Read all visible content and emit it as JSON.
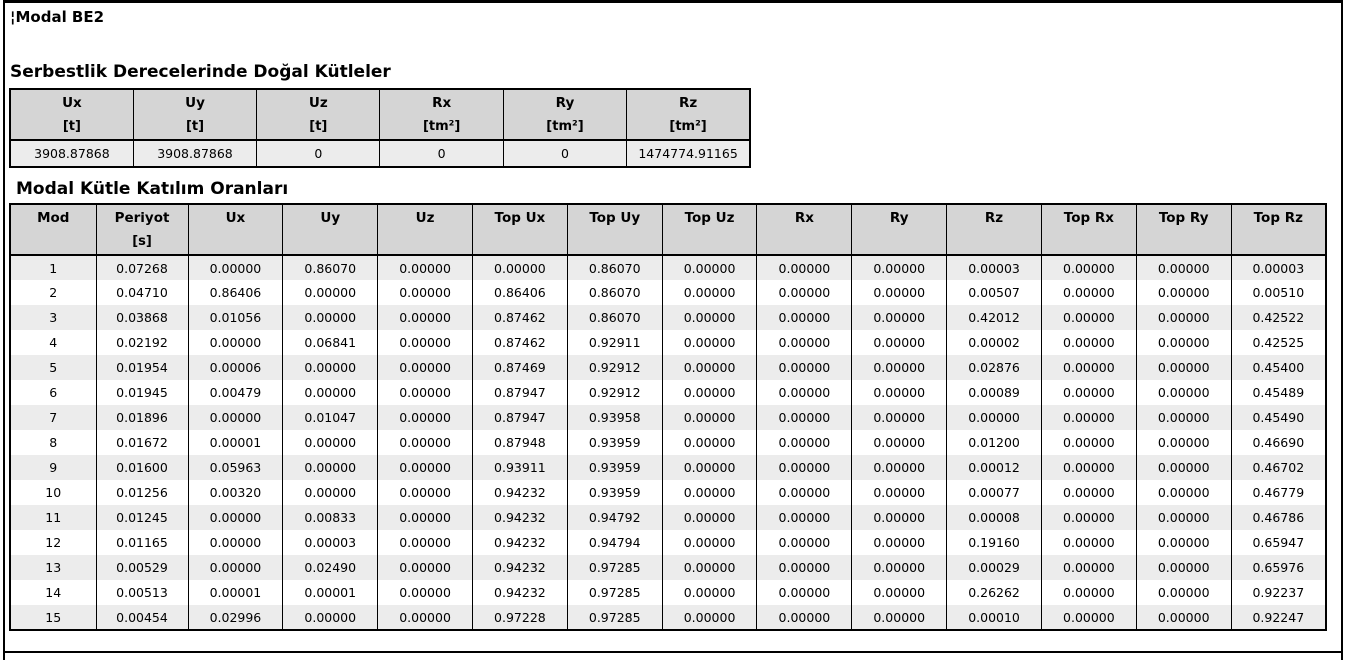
{
  "page": {
    "title": "¦Modal BE2"
  },
  "colors": {
    "header_bg": "#d5d5d5",
    "row_alt_bg": "#ececec",
    "row_bg": "#ffffff",
    "border": "#000000"
  },
  "natural_masses_table": {
    "heading": "Serbestlik Derecelerinde Doğal Kütleler",
    "columns": [
      {
        "label": "Ux",
        "unit": "[t]"
      },
      {
        "label": "Uy",
        "unit": "[t]"
      },
      {
        "label": "Uz",
        "unit": "[t]"
      },
      {
        "label": "Rx",
        "unit": "[tm²]"
      },
      {
        "label": "Ry",
        "unit": "[tm²]"
      },
      {
        "label": "Rz",
        "unit": "[tm²]"
      }
    ],
    "values": [
      "3908.87868",
      "3908.87868",
      "0",
      "0",
      "0",
      "1474774.91165"
    ]
  },
  "modal_participation_table": {
    "heading": "Modal Kütle Katılım Oranları",
    "columns": [
      {
        "label": "Mod",
        "unit": ""
      },
      {
        "label": "Periyot",
        "unit": "[s]"
      },
      {
        "label": "Ux",
        "unit": ""
      },
      {
        "label": "Uy",
        "unit": ""
      },
      {
        "label": "Uz",
        "unit": ""
      },
      {
        "label": "Top Ux",
        "unit": ""
      },
      {
        "label": "Top Uy",
        "unit": ""
      },
      {
        "label": "Top Uz",
        "unit": ""
      },
      {
        "label": "Rx",
        "unit": ""
      },
      {
        "label": "Ry",
        "unit": ""
      },
      {
        "label": "Rz",
        "unit": ""
      },
      {
        "label": "Top Rx",
        "unit": ""
      },
      {
        "label": "Top Ry",
        "unit": ""
      },
      {
        "label": "Top Rz",
        "unit": ""
      }
    ],
    "rows": [
      [
        "1",
        "0.07268",
        "0.00000",
        "0.86070",
        "0.00000",
        "0.00000",
        "0.86070",
        "0.00000",
        "0.00000",
        "0.00000",
        "0.00003",
        "0.00000",
        "0.00000",
        "0.00003"
      ],
      [
        "2",
        "0.04710",
        "0.86406",
        "0.00000",
        "0.00000",
        "0.86406",
        "0.86070",
        "0.00000",
        "0.00000",
        "0.00000",
        "0.00507",
        "0.00000",
        "0.00000",
        "0.00510"
      ],
      [
        "3",
        "0.03868",
        "0.01056",
        "0.00000",
        "0.00000",
        "0.87462",
        "0.86070",
        "0.00000",
        "0.00000",
        "0.00000",
        "0.42012",
        "0.00000",
        "0.00000",
        "0.42522"
      ],
      [
        "4",
        "0.02192",
        "0.00000",
        "0.06841",
        "0.00000",
        "0.87462",
        "0.92911",
        "0.00000",
        "0.00000",
        "0.00000",
        "0.00002",
        "0.00000",
        "0.00000",
        "0.42525"
      ],
      [
        "5",
        "0.01954",
        "0.00006",
        "0.00000",
        "0.00000",
        "0.87469",
        "0.92912",
        "0.00000",
        "0.00000",
        "0.00000",
        "0.02876",
        "0.00000",
        "0.00000",
        "0.45400"
      ],
      [
        "6",
        "0.01945",
        "0.00479",
        "0.00000",
        "0.00000",
        "0.87947",
        "0.92912",
        "0.00000",
        "0.00000",
        "0.00000",
        "0.00089",
        "0.00000",
        "0.00000",
        "0.45489"
      ],
      [
        "7",
        "0.01896",
        "0.00000",
        "0.01047",
        "0.00000",
        "0.87947",
        "0.93958",
        "0.00000",
        "0.00000",
        "0.00000",
        "0.00000",
        "0.00000",
        "0.00000",
        "0.45490"
      ],
      [
        "8",
        "0.01672",
        "0.00001",
        "0.00000",
        "0.00000",
        "0.87948",
        "0.93959",
        "0.00000",
        "0.00000",
        "0.00000",
        "0.01200",
        "0.00000",
        "0.00000",
        "0.46690"
      ],
      [
        "9",
        "0.01600",
        "0.05963",
        "0.00000",
        "0.00000",
        "0.93911",
        "0.93959",
        "0.00000",
        "0.00000",
        "0.00000",
        "0.00012",
        "0.00000",
        "0.00000",
        "0.46702"
      ],
      [
        "10",
        "0.01256",
        "0.00320",
        "0.00000",
        "0.00000",
        "0.94232",
        "0.93959",
        "0.00000",
        "0.00000",
        "0.00000",
        "0.00077",
        "0.00000",
        "0.00000",
        "0.46779"
      ],
      [
        "11",
        "0.01245",
        "0.00000",
        "0.00833",
        "0.00000",
        "0.94232",
        "0.94792",
        "0.00000",
        "0.00000",
        "0.00000",
        "0.00008",
        "0.00000",
        "0.00000",
        "0.46786"
      ],
      [
        "12",
        "0.01165",
        "0.00000",
        "0.00003",
        "0.00000",
        "0.94232",
        "0.94794",
        "0.00000",
        "0.00000",
        "0.00000",
        "0.19160",
        "0.00000",
        "0.00000",
        "0.65947"
      ],
      [
        "13",
        "0.00529",
        "0.00000",
        "0.02490",
        "0.00000",
        "0.94232",
        "0.97285",
        "0.00000",
        "0.00000",
        "0.00000",
        "0.00029",
        "0.00000",
        "0.00000",
        "0.65976"
      ],
      [
        "14",
        "0.00513",
        "0.00001",
        "0.00001",
        "0.00000",
        "0.94232",
        "0.97285",
        "0.00000",
        "0.00000",
        "0.00000",
        "0.26262",
        "0.00000",
        "0.00000",
        "0.92237"
      ],
      [
        "15",
        "0.00454",
        "0.02996",
        "0.00000",
        "0.00000",
        "0.97228",
        "0.97285",
        "0.00000",
        "0.00000",
        "0.00000",
        "0.00010",
        "0.00000",
        "0.00000",
        "0.92247"
      ]
    ]
  }
}
